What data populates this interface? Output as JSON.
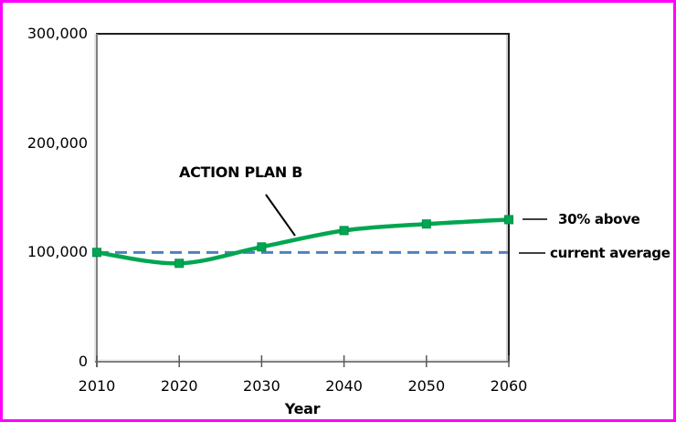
{
  "frame": {
    "border_color": "#FF00FF",
    "background_color": "#FFFFFF"
  },
  "chart_data": {
    "type": "line",
    "title": "",
    "xlabel": "Year",
    "ylabel": "",
    "x": [
      2010,
      2020,
      2030,
      2040,
      2050,
      2060
    ],
    "xtick_labels": [
      "2010",
      "2020",
      "2030",
      "2040",
      "2050",
      "2060"
    ],
    "xlim": [
      2010,
      2060
    ],
    "yticks": [
      0,
      100000,
      200000,
      300000
    ],
    "ytick_labels": [
      "0",
      "100,000",
      "200,000",
      "300,000"
    ],
    "ylim": [
      0,
      300000
    ],
    "grid": false,
    "legend_position": "none",
    "series": [
      {
        "name": "ACTION PLAN B",
        "style": "smooth-line",
        "marker": "square",
        "color": "#00A651",
        "marker_edge_color": "#008F45",
        "values": [
          100000,
          90000,
          105000,
          120000,
          126000,
          130000
        ]
      },
      {
        "name": "current average baseline",
        "style": "dashed-line",
        "marker": "none",
        "color": "#4F81BD",
        "values": [
          100000,
          100000,
          100000,
          100000,
          100000,
          100000
        ]
      }
    ],
    "annotations": [
      {
        "text": "ACTION PLAN B",
        "points_to": "green series curve"
      },
      {
        "text": "30% above",
        "points_to": "series end value 130,000"
      },
      {
        "text": "current average",
        "points_to": "dashed baseline at 100,000"
      }
    ]
  }
}
